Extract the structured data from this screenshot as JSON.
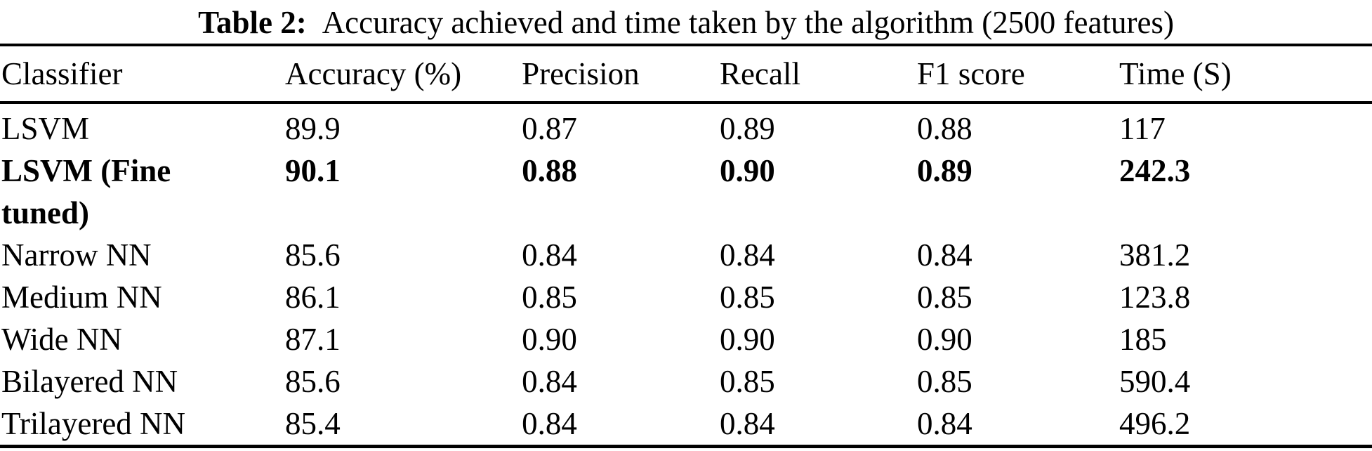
{
  "caption": {
    "label": "Table 2:",
    "text": "Accuracy achieved and time taken by the algorithm (2500 features)"
  },
  "colors": {
    "text": "#000000",
    "background": "#ffffff",
    "rule": "#000000"
  },
  "chart_data": {
    "type": "table",
    "title": "Table 2: Accuracy achieved and time taken by the algorithm (2500 features)",
    "columns": [
      "Classifier",
      "Accuracy (%)",
      "Precision",
      "Recall",
      "F1 score",
      "Time (S)"
    ],
    "rows": [
      {
        "classifier": "LSVM",
        "accuracy": "89.9",
        "precision": "0.87",
        "recall": "0.89",
        "f1": "0.88",
        "time": "117",
        "bold": false
      },
      {
        "classifier": "LSVM (Fine tuned)",
        "accuracy": "90.1",
        "precision": "0.88",
        "recall": "0.90",
        "f1": "0.89",
        "time": "242.3",
        "bold": true
      },
      {
        "classifier": "Narrow NN",
        "accuracy": "85.6",
        "precision": "0.84",
        "recall": "0.84",
        "f1": "0.84",
        "time": "381.2",
        "bold": false
      },
      {
        "classifier": "Medium NN",
        "accuracy": "86.1",
        "precision": "0.85",
        "recall": "0.85",
        "f1": "0.85",
        "time": "123.8",
        "bold": false
      },
      {
        "classifier": "Wide NN",
        "accuracy": "87.1",
        "precision": "0.90",
        "recall": "0.90",
        "f1": "0.90",
        "time": "185",
        "bold": false
      },
      {
        "classifier": "Bilayered NN",
        "accuracy": "85.6",
        "precision": "0.84",
        "recall": "0.85",
        "f1": "0.85",
        "time": "590.4",
        "bold": false
      },
      {
        "classifier": "Trilayered NN",
        "accuracy": "85.4",
        "precision": "0.84",
        "recall": "0.84",
        "f1": "0.84",
        "time": "496.2",
        "bold": false
      }
    ]
  }
}
